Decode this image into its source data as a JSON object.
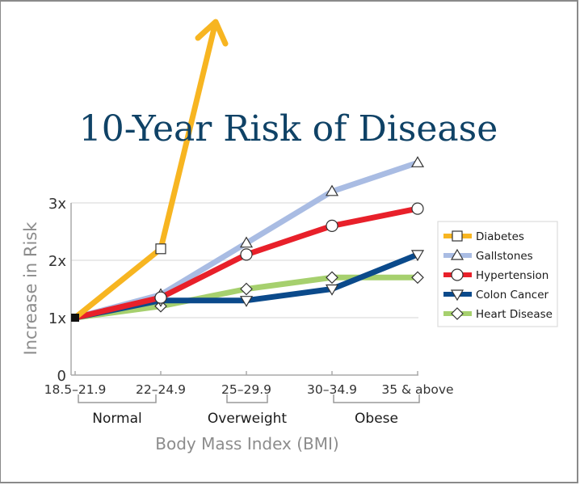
{
  "chart_data": {
    "type": "line",
    "title": "10-Year Risk of Disease",
    "xlabel": "Body Mass Index (BMI)",
    "ylabel": "Increase in Risk",
    "categories": [
      "18.5–21.9",
      "22–24.9",
      "25–29.9",
      "30–34.9",
      "35 & above"
    ],
    "yticks": [
      {
        "value": 0,
        "label": "0"
      },
      {
        "value": 1,
        "label": "1x"
      },
      {
        "value": 2,
        "label": "2x"
      },
      {
        "value": 3,
        "label": "3x"
      }
    ],
    "ylim": [
      0,
      3.9
    ],
    "grid": true,
    "legend_position": "right",
    "groups": [
      {
        "label": "Normal",
        "from": 0,
        "to": 1
      },
      {
        "label": "Overweight",
        "from": 2,
        "to": 2
      },
      {
        "label": "Obese",
        "from": 3,
        "to": 4
      }
    ],
    "series": [
      {
        "name": "Diabetes",
        "color": "#f7b521",
        "marker": "square",
        "values": [
          1,
          2.2
        ],
        "arrow_continues": true
      },
      {
        "name": "Gallstones",
        "color": "#a9bce3",
        "marker": "triangle-up",
        "values": [
          1,
          1.4,
          2.3,
          3.2,
          3.7
        ]
      },
      {
        "name": "Hypertension",
        "color": "#e8202a",
        "marker": "circle",
        "values": [
          1,
          1.35,
          2.1,
          2.6,
          2.9
        ]
      },
      {
        "name": "Colon Cancer",
        "color": "#0b4a8b",
        "marker": "triangle-down",
        "values": [
          1,
          1.3,
          1.3,
          1.5,
          2.1
        ]
      },
      {
        "name": "Heart Disease",
        "color": "#a6d06e",
        "marker": "diamond",
        "values": [
          1,
          1.2,
          1.5,
          1.7,
          1.7
        ]
      }
    ],
    "colors": {
      "title": "#0f4266",
      "axis_label": "#8c8c8c",
      "tick_text": "#333333",
      "grid": "#e4e4e4",
      "axis": "#aaaaaa",
      "origin_marker": "#111111"
    }
  }
}
